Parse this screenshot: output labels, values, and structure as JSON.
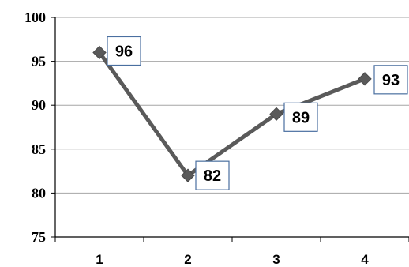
{
  "chart_data": {
    "type": "line",
    "title": "",
    "xlabel": "",
    "ylabel": "",
    "categories": [
      "1",
      "2",
      "3",
      "4"
    ],
    "series": [
      {
        "values": [
          96,
          82,
          89,
          93
        ]
      }
    ],
    "data_labels": [
      "96",
      "82",
      "89",
      "93"
    ],
    "ylim": [
      75,
      100
    ],
    "yticks": [
      "75",
      "80",
      "85",
      "90",
      "95",
      "100"
    ],
    "grid": true,
    "legend": "none",
    "colors": {
      "line": "#5a5a5a",
      "marker": "#5a5a5a",
      "grid": "#a6a6a6",
      "label_border": "#4a6fa0"
    }
  }
}
